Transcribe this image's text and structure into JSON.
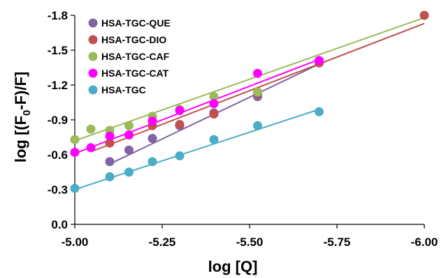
{
  "chart_data": {
    "type": "scatter",
    "xlabel": "log [Q]",
    "ylabel_parts": {
      "pre": "log [(F",
      "sub": "0",
      "post": "-F)/F]"
    },
    "xlim": [
      -5.0,
      -6.0
    ],
    "ylim": [
      0.0,
      -1.8
    ],
    "x_ticks": [
      -5.0,
      -5.25,
      -5.5,
      -5.75,
      -6.0
    ],
    "x_tick_labels": [
      "-5.00",
      "-5.25",
      "-5.50",
      "-5.75",
      "-6.00"
    ],
    "y_ticks": [
      0.0,
      -0.3,
      -0.6,
      -0.9,
      -1.2,
      -1.5,
      -1.8
    ],
    "y_tick_labels": [
      "0.0",
      "-0.3",
      "-0.6",
      "-0.9",
      "-1.2",
      "-1.5",
      "-1.8"
    ],
    "grid": false,
    "legend_position": "top-left",
    "series": [
      {
        "name": "HSA-TGC-QUE",
        "color": "#8064a2",
        "x": [
          -5.1,
          -5.155,
          -5.222,
          -5.3,
          -5.398,
          -5.523,
          -5.699
        ],
        "y": [
          -0.54,
          -0.64,
          -0.74,
          -0.85,
          -0.96,
          -1.1,
          -1.39
        ],
        "fit": [
          [
            -5.1,
            -0.52
          ],
          [
            -5.699,
            -1.38
          ]
        ]
      },
      {
        "name": "HSA-TGC-DIO",
        "color": "#c0504d",
        "x": [
          -5.1,
          -5.155,
          -5.222,
          -5.3,
          -5.398,
          -5.523,
          -5.699,
          -6.0
        ],
        "y": [
          -0.7,
          -0.77,
          -0.85,
          -0.86,
          -0.95,
          -1.13,
          -1.39,
          -1.8
        ],
        "fit": [
          [
            -5.05,
            -0.63
          ],
          [
            -6.0,
            -1.73
          ]
        ]
      },
      {
        "name": "HSA-TGC-CAF",
        "color": "#9bbb59",
        "x": [
          -5.0,
          -5.046,
          -5.1,
          -5.155,
          -5.222,
          -5.3,
          -5.398,
          -5.523,
          -5.699
        ],
        "y": [
          -0.73,
          -0.82,
          -0.81,
          -0.85,
          -0.93,
          -0.99,
          -1.1,
          -1.14,
          -1.41
        ],
        "fit": [
          [
            -5.0,
            -0.72
          ],
          [
            -6.0,
            -1.78
          ]
        ]
      },
      {
        "name": "HSA-TGC-CAT",
        "color": "#ff00ff",
        "x": [
          -5.0,
          -5.046,
          -5.1,
          -5.155,
          -5.222,
          -5.3,
          -5.398,
          -5.523,
          -5.699
        ],
        "y": [
          -0.62,
          -0.66,
          -0.76,
          -0.77,
          -0.89,
          -0.98,
          -1.04,
          -1.3,
          -1.41
        ],
        "fit": [
          [
            -5.0,
            -0.61
          ],
          [
            -5.699,
            -1.42
          ]
        ]
      },
      {
        "name": "HSA-TGC",
        "color": "#4bacc6",
        "x": [
          -5.0,
          -5.1,
          -5.155,
          -5.222,
          -5.3,
          -5.398,
          -5.523,
          -5.699
        ],
        "y": [
          -0.31,
          -0.41,
          -0.45,
          -0.54,
          -0.59,
          -0.73,
          -0.85,
          -0.97
        ],
        "fit": [
          [
            -5.0,
            -0.3
          ],
          [
            -5.699,
            -0.99
          ]
        ]
      }
    ]
  }
}
